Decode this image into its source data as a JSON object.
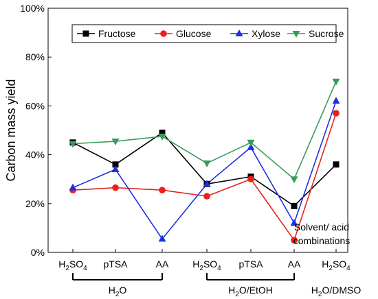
{
  "chart_data": {
    "type": "line",
    "ylabel": "Carbon mass yield",
    "ylim": [
      0,
      100
    ],
    "yticks": [
      0,
      20,
      40,
      60,
      80,
      100
    ],
    "ytick_suffix": "%",
    "categories": [
      {
        "base": "H",
        "sub": "2",
        "rest": "SO",
        "sub2": "4"
      },
      {
        "text": "pTSA"
      },
      {
        "text": "AA"
      },
      {
        "base": "H",
        "sub": "2",
        "rest": "SO",
        "sub2": "4"
      },
      {
        "text": "pTSA"
      },
      {
        "text": "AA"
      },
      {
        "base": "H",
        "sub": "2",
        "rest": "SO",
        "sub2": "4"
      }
    ],
    "groups": [
      {
        "label": "H2O",
        "start": 0,
        "end": 2,
        "parts": [
          {
            "t": "H"
          },
          {
            "t": "2",
            "sub": true
          },
          {
            "t": "O"
          }
        ]
      },
      {
        "label": "H2O/EtOH",
        "start": 3,
        "end": 5,
        "parts": [
          {
            "t": "H"
          },
          {
            "t": "2",
            "sub": true
          },
          {
            "t": "O/EtOH"
          }
        ]
      },
      {
        "label": "H2O/DMSO",
        "start": 6,
        "end": 6,
        "parts": [
          {
            "t": "H"
          },
          {
            "t": "2",
            "sub": true
          },
          {
            "t": "O/DMSO"
          }
        ]
      }
    ],
    "annotation": [
      "Solvent/ acid",
      "combinations"
    ],
    "legend_position": "top",
    "series": [
      {
        "name": "Fructose",
        "color": "#000000",
        "marker": "square",
        "values": [
          45,
          36,
          49,
          28,
          31,
          19,
          36
        ]
      },
      {
        "name": "Glucose",
        "color": "#e8221b",
        "marker": "circle",
        "values": [
          25.5,
          26.5,
          25.5,
          23,
          30,
          5,
          57
        ]
      },
      {
        "name": "Xylose",
        "color": "#1f2ee6",
        "marker": "triangle-up",
        "values": [
          26.5,
          34,
          5.5,
          28,
          43,
          12,
          62
        ]
      },
      {
        "name": "Sucrose",
        "color": "#3a9a5c",
        "marker": "triangle-down",
        "values": [
          44.5,
          45.5,
          47.5,
          36.5,
          45,
          30,
          70
        ]
      }
    ]
  }
}
